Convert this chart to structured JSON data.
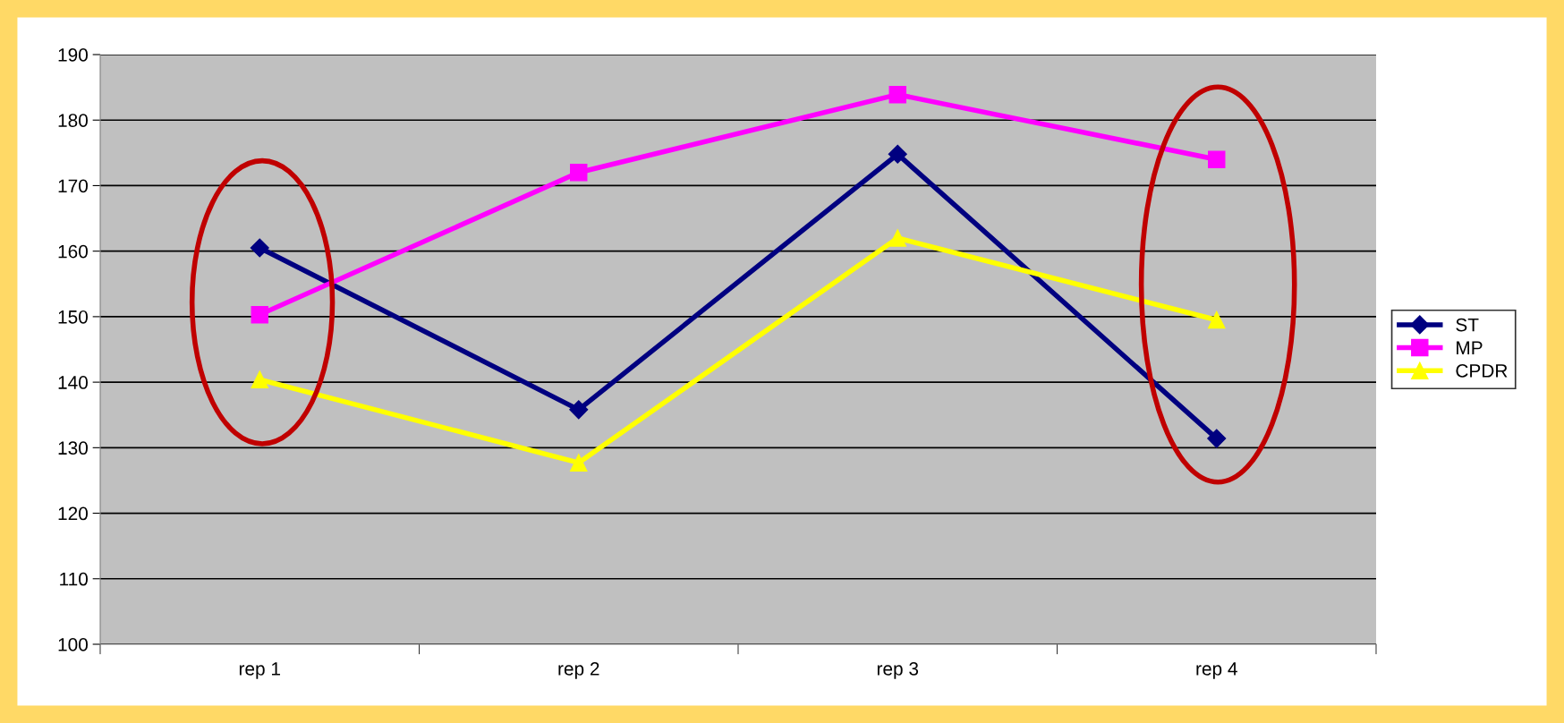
{
  "chart_data": {
    "type": "line",
    "categories": [
      "rep 1",
      "rep 2",
      "rep 3",
      "rep 4"
    ],
    "series": [
      {
        "name": "ST",
        "color": "#000080",
        "marker": "diamond",
        "values": [
          160.5,
          135.8,
          174.8,
          131.4
        ]
      },
      {
        "name": "MP",
        "color": "#ff00ff",
        "marker": "square",
        "values": [
          150.3,
          172,
          183.9,
          174
        ]
      },
      {
        "name": "CPDR",
        "color": "#ffff00",
        "marker": "triangle",
        "values": [
          140.4,
          127.7,
          162,
          149.5
        ]
      }
    ],
    "ylim": [
      100,
      190
    ],
    "yticks": [
      100,
      110,
      120,
      130,
      140,
      150,
      160,
      170,
      180,
      190
    ],
    "grid": "y",
    "legend": "right",
    "line_style": "solid"
  }
}
